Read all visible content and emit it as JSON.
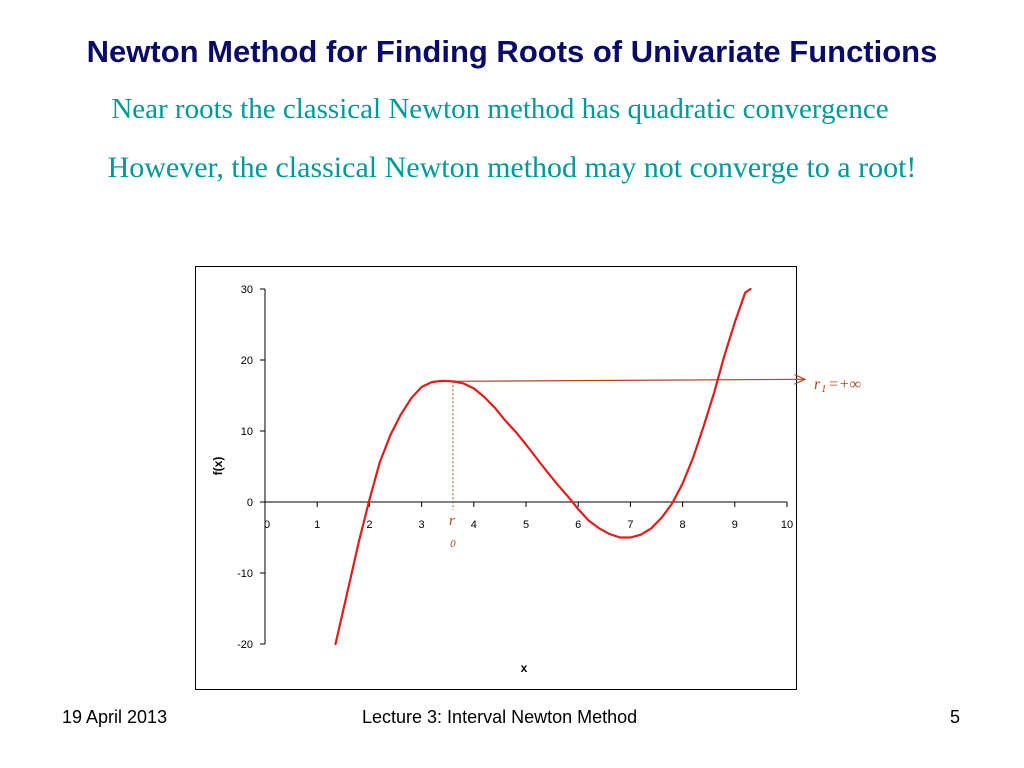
{
  "slide": {
    "title": "Newton Method for Finding Roots of Univariate Functions",
    "line1": "Near roots the classical Newton method has quadratic convergence",
    "line2": "However, the classical Newton method may not converge to a root!"
  },
  "footer": {
    "date": "19 April 2013",
    "lecture": "Lecture 3: Interval Newton Method",
    "page": "5"
  },
  "colors": {
    "curve": "#e31b1b",
    "annotation": "#b5451b",
    "title": "#0a0a6b",
    "subtitle": "#009999"
  },
  "chart_data": {
    "type": "line",
    "xlabel": "x",
    "ylabel": "f(x)",
    "xlim": [
      0,
      10
    ],
    "ylim": [
      -20,
      30
    ],
    "xticks": [
      0,
      1,
      2,
      3,
      4,
      5,
      6,
      7,
      8,
      9,
      10
    ],
    "yticks": [
      -20,
      -10,
      0,
      10,
      20,
      30
    ],
    "grid": false,
    "series": [
      {
        "x": [
          1.35,
          1.6,
          1.8,
          2.0,
          2.2,
          2.4,
          2.6,
          2.8,
          3.0,
          3.2,
          3.4,
          3.6,
          3.8,
          4.0,
          4.2,
          4.4,
          4.6,
          4.8,
          5.0,
          5.2,
          5.4,
          5.6,
          5.8,
          6.0,
          6.2,
          6.4,
          6.6,
          6.8,
          7.0,
          7.2,
          7.4,
          7.6,
          7.8,
          8.0,
          8.2,
          8.4,
          8.6,
          8.8,
          9.0,
          9.2,
          9.3
        ],
        "y": [
          -20,
          -12,
          -5.5,
          0.3,
          5.6,
          9.4,
          12.3,
          14.6,
          16.2,
          16.9,
          17.05,
          17.0,
          16.7,
          16.0,
          14.8,
          13.3,
          11.5,
          9.9,
          8.1,
          6.2,
          4.3,
          2.5,
          0.8,
          -1.0,
          -2.6,
          -3.7,
          -4.5,
          -5.0,
          -5.0,
          -4.6,
          -3.7,
          -2.2,
          -0.2,
          2.6,
          6.2,
          10.6,
          15.3,
          20.6,
          25.3,
          29.5,
          30
        ]
      }
    ],
    "annotations": {
      "start_point_label": "r",
      "start_point_subscript": "0",
      "start_point_x": 3.6,
      "tangent_y": 17.0,
      "next_iterate_label": "r",
      "next_iterate_subscript": "1",
      "next_iterate_value": "=+∞"
    }
  }
}
